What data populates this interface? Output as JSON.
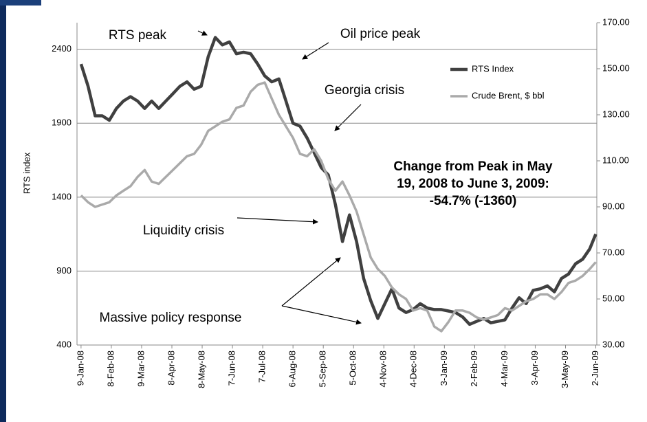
{
  "chart_data": {
    "type": "line",
    "y_label": "RTS index",
    "x": [
      "2008-01-09",
      "2008-01-16",
      "2008-01-23",
      "2008-01-30",
      "2008-02-06",
      "2008-02-13",
      "2008-02-20",
      "2008-02-27",
      "2008-03-05",
      "2008-03-12",
      "2008-03-19",
      "2008-03-26",
      "2008-04-02",
      "2008-04-09",
      "2008-04-16",
      "2008-04-23",
      "2008-04-30",
      "2008-05-07",
      "2008-05-14",
      "2008-05-21",
      "2008-05-28",
      "2008-06-04",
      "2008-06-11",
      "2008-06-18",
      "2008-06-25",
      "2008-07-02",
      "2008-07-09",
      "2008-07-16",
      "2008-07-23",
      "2008-07-30",
      "2008-08-06",
      "2008-08-13",
      "2008-08-20",
      "2008-08-27",
      "2008-09-03",
      "2008-09-10",
      "2008-09-17",
      "2008-09-24",
      "2008-10-01",
      "2008-10-08",
      "2008-10-15",
      "2008-10-22",
      "2008-10-29",
      "2008-11-05",
      "2008-11-12",
      "2008-11-19",
      "2008-11-26",
      "2008-12-03",
      "2008-12-10",
      "2008-12-17",
      "2008-12-24",
      "2008-12-31",
      "2009-01-07",
      "2009-01-14",
      "2009-01-21",
      "2009-01-28",
      "2009-02-04",
      "2009-02-11",
      "2009-02-18",
      "2009-02-25",
      "2009-03-04",
      "2009-03-11",
      "2009-03-18",
      "2009-03-25",
      "2009-04-01",
      "2009-04-08",
      "2009-04-15",
      "2009-04-22",
      "2009-04-29",
      "2009-05-06",
      "2009-05-13",
      "2009-05-20",
      "2009-05-27",
      "2009-06-02"
    ],
    "xlim": [
      "2008-01-05",
      "2009-06-03"
    ],
    "xticks": [
      {
        "value": "2008-01-09",
        "label": "9-Jan-08"
      },
      {
        "value": "2008-02-08",
        "label": "8-Feb-08"
      },
      {
        "value": "2008-03-09",
        "label": "9-Mar-08"
      },
      {
        "value": "2008-04-08",
        "label": "8-Apr-08"
      },
      {
        "value": "2008-05-08",
        "label": "8-May-08"
      },
      {
        "value": "2008-06-07",
        "label": "7-Jun-08"
      },
      {
        "value": "2008-07-07",
        "label": "7-Jul-08"
      },
      {
        "value": "2008-08-06",
        "label": "6-Aug-08"
      },
      {
        "value": "2008-09-05",
        "label": "5-Sep-08"
      },
      {
        "value": "2008-10-05",
        "label": "5-Oct-08"
      },
      {
        "value": "2008-11-04",
        "label": "4-Nov-08"
      },
      {
        "value": "2008-12-04",
        "label": "4-Dec-08"
      },
      {
        "value": "2009-01-03",
        "label": "3-Jan-09"
      },
      {
        "value": "2009-02-02",
        "label": "2-Feb-09"
      },
      {
        "value": "2009-03-04",
        "label": "4-Mar-09"
      },
      {
        "value": "2009-04-03",
        "label": "3-Apr-09"
      },
      {
        "value": "2009-05-03",
        "label": "3-May-09"
      },
      {
        "value": "2009-06-02",
        "label": "2-Jun-09"
      }
    ],
    "ylim": [
      400,
      2580
    ],
    "yticks": [
      400,
      900,
      1400,
      1900,
      2400
    ],
    "y2lim": [
      30,
      170
    ],
    "y2ticks": [
      {
        "value": 30,
        "label": "30.00"
      },
      {
        "value": 50,
        "label": "50.00"
      },
      {
        "value": 70,
        "label": "70.00"
      },
      {
        "value": 90,
        "label": "90.00"
      },
      {
        "value": 110,
        "label": "110.00"
      },
      {
        "value": 130,
        "label": "130.00"
      },
      {
        "value": 150,
        "label": "150.00"
      },
      {
        "value": 170,
        "label": "170.00"
      }
    ],
    "grid": true,
    "series": [
      {
        "name": "RTS Index",
        "color": "#404040",
        "values": [
          2300,
          2150,
          1950,
          1950,
          1920,
          2000,
          2050,
          2080,
          2050,
          2000,
          2050,
          2000,
          2050,
          2100,
          2150,
          2180,
          2130,
          2150,
          2350,
          2480,
          2430,
          2450,
          2370,
          2380,
          2370,
          2300,
          2220,
          2180,
          2200,
          2050,
          1900,
          1880,
          1800,
          1700,
          1600,
          1550,
          1350,
          1100,
          1280,
          1100,
          850,
          700,
          580,
          680,
          780,
          650,
          620,
          640,
          680,
          650,
          640,
          640,
          630,
          620,
          590,
          540,
          560,
          580,
          550,
          560,
          570,
          650,
          720,
          680,
          770,
          780,
          800,
          760,
          850,
          880,
          950,
          980,
          1050,
          1150
        ]
      },
      {
        "name": "Crude Brent, $ bbl",
        "color": "#aaaaaa",
        "axis": "y2",
        "values": [
          95,
          92,
          90,
          91,
          92,
          95,
          97,
          99,
          103,
          106,
          101,
          100,
          103,
          106,
          109,
          112,
          113,
          117,
          123,
          125,
          127,
          128,
          133,
          134,
          140,
          143,
          144,
          137,
          130,
          125,
          120,
          113,
          112,
          115,
          110,
          102,
          97,
          101,
          95,
          88,
          78,
          68,
          63,
          60,
          55,
          52,
          50,
          45,
          46,
          45,
          38,
          36,
          40,
          45,
          45,
          44,
          42,
          41,
          42,
          43,
          46,
          45,
          47,
          49,
          50,
          52,
          52,
          50,
          53,
          57,
          58,
          60,
          63,
          66
        ]
      }
    ],
    "annotations": [
      "RTS peak",
      "Oil price peak",
      "Georgia crisis",
      "Liquidity crisis",
      "Massive policy response"
    ],
    "note": [
      "Change from Peak in May",
      "19, 2008 to June 3, 2009:",
      "-54.7% (-1360)"
    ]
  }
}
